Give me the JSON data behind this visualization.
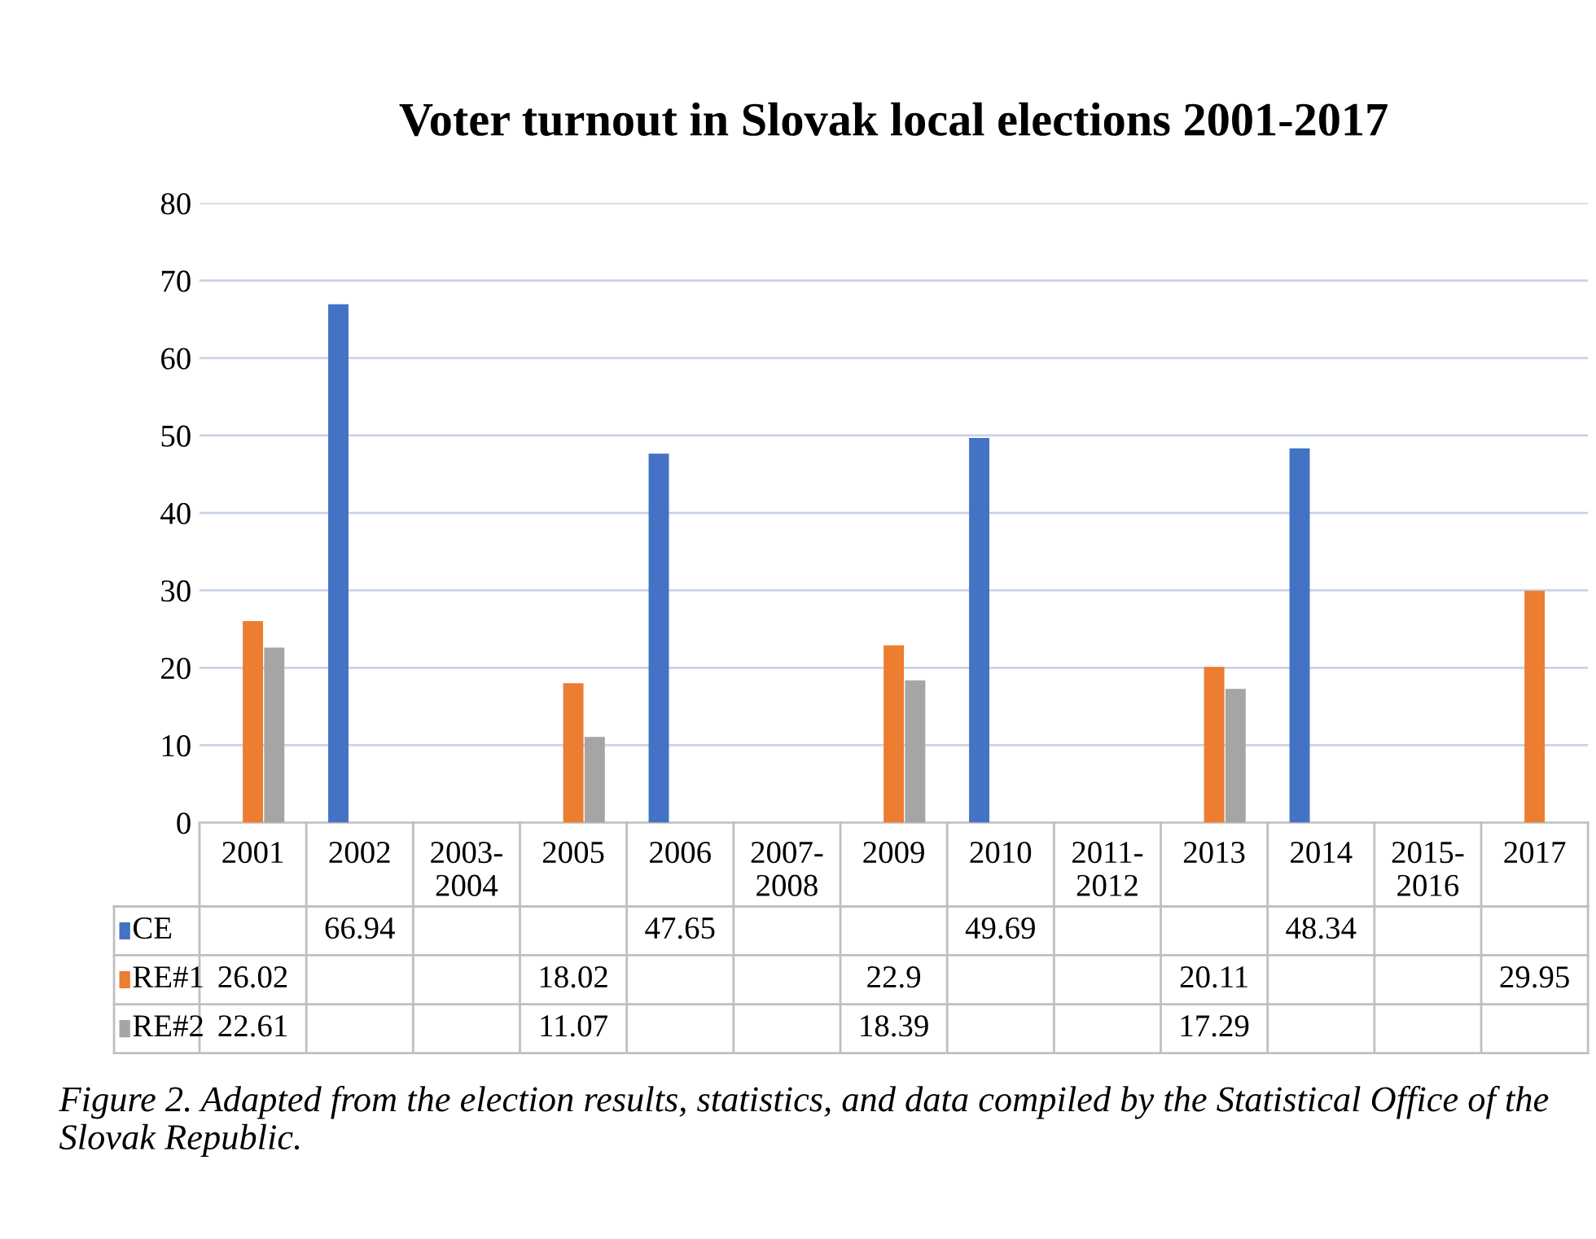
{
  "chart_data": {
    "type": "bar",
    "title": "Voter turnout in Slovak local elections 2001-2017",
    "categories": [
      "2001",
      "2002",
      "2003-\n2004",
      "2005",
      "2006",
      "2007-\n2008",
      "2009",
      "2010",
      "2011-\n2012",
      "2013",
      "2014",
      "2015-\n2016",
      "2017"
    ],
    "series": [
      {
        "name": "CE",
        "color": "#4472c4",
        "values": [
          null,
          66.94,
          null,
          null,
          47.65,
          null,
          null,
          49.69,
          null,
          null,
          48.34,
          null,
          null
        ]
      },
      {
        "name": "RE#1",
        "color": "#ed7d31",
        "values": [
          26.02,
          null,
          null,
          18.02,
          null,
          null,
          22.9,
          null,
          null,
          20.11,
          null,
          null,
          29.95
        ]
      },
      {
        "name": "RE#2",
        "color": "#a5a5a5",
        "values": [
          22.61,
          null,
          null,
          11.07,
          null,
          null,
          18.39,
          null,
          null,
          17.29,
          null,
          null,
          null
        ]
      }
    ],
    "ylim": [
      0,
      80
    ],
    "yticks": [
      0,
      10,
      20,
      30,
      40,
      50,
      60,
      70,
      80
    ],
    "grid": "y",
    "legend": "bottom",
    "data_labels": true,
    "annotations": [
      "Figure 2. Adapted from the election results, statistics, and data compiled by the Statistical Office of the Slovak Republic."
    ]
  }
}
